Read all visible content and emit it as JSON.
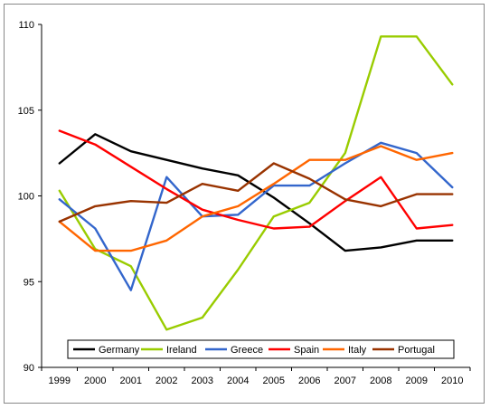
{
  "chart_data": {
    "type": "line",
    "title": "",
    "xlabel": "",
    "ylabel": "",
    "categories": [
      "1999",
      "2000",
      "2001",
      "2002",
      "2003",
      "2004",
      "2005",
      "2006",
      "2007",
      "2008",
      "2009",
      "2010"
    ],
    "ylim": [
      90,
      110
    ],
    "yticks": [
      "90",
      "95",
      "100",
      "105",
      "110"
    ],
    "grid": false,
    "legend_position": "bottom-inside",
    "series": [
      {
        "name": "Germany",
        "color": "#000000",
        "values": [
          101.9,
          103.6,
          102.6,
          102.1,
          101.6,
          101.2,
          99.9,
          98.4,
          96.8,
          97.0,
          97.4,
          97.4
        ]
      },
      {
        "name": "Ireland",
        "color": "#99cc00",
        "values": [
          100.3,
          96.9,
          95.9,
          92.2,
          92.9,
          95.7,
          98.8,
          99.6,
          102.5,
          109.3,
          109.3,
          106.5
        ]
      },
      {
        "name": "Greece",
        "color": "#3366cc",
        "values": [
          99.8,
          98.1,
          94.5,
          101.1,
          98.8,
          98.9,
          100.6,
          100.6,
          101.9,
          103.1,
          102.5,
          100.5
        ]
      },
      {
        "name": "Spain",
        "color": "#ff0000",
        "values": [
          103.8,
          103.0,
          101.7,
          100.4,
          99.2,
          98.6,
          98.1,
          98.2,
          99.7,
          101.1,
          98.1,
          98.3
        ]
      },
      {
        "name": "Italy",
        "color": "#ff6600",
        "values": [
          98.5,
          96.8,
          96.8,
          97.4,
          98.8,
          99.4,
          100.7,
          102.1,
          102.1,
          102.9,
          102.1,
          102.5
        ]
      },
      {
        "name": "Portugal",
        "color": "#993300",
        "values": [
          98.5,
          99.4,
          99.7,
          99.6,
          100.7,
          100.3,
          101.9,
          101.0,
          99.8,
          99.4,
          100.1,
          100.1
        ]
      }
    ]
  }
}
